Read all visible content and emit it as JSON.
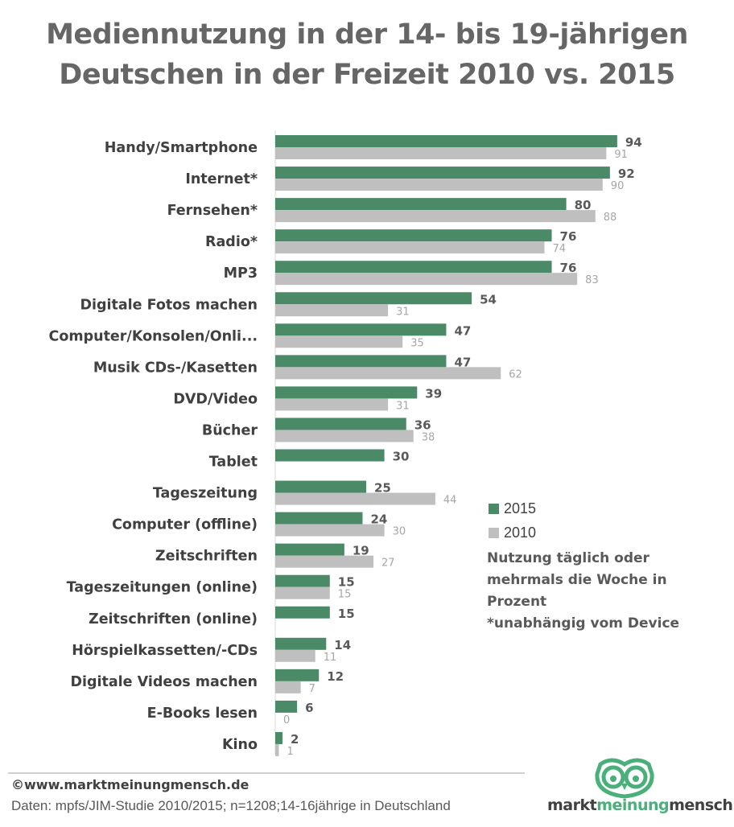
{
  "title_line1": "Mediennutzung in der 14- bis 19-jährigen",
  "title_line2": "Deutschen in der Freizeit 2010 vs. 2015",
  "colors": {
    "s2015": "#4a8a67",
    "s2010": "#bfbfbf",
    "logo_green": "#4ab07a"
  },
  "chart_data": {
    "type": "bar",
    "orientation": "horizontal",
    "categories": [
      "Handy/Smartphone",
      "Internet*",
      "Fernsehen*",
      "Radio*",
      "MP3",
      "Digitale Fotos machen",
      "Computer/Konsolen/Onli...",
      "Musik CDs-/Kasetten",
      "DVD/Video",
      "Bücher",
      "Tablet",
      "Tageszeitung",
      "Computer (offline)",
      "Zeitschriften",
      "Tageszeitungen (online)",
      "Zeitschriften (online)",
      "Hörspielkassetten/-CDs",
      "Digitale Videos machen",
      "E-Books lesen",
      "Kino"
    ],
    "series": [
      {
        "name": "2015",
        "values": [
          94,
          92,
          80,
          76,
          76,
          54,
          47,
          47,
          39,
          36,
          30,
          25,
          24,
          19,
          15,
          15,
          14,
          12,
          6,
          2
        ]
      },
      {
        "name": "2010",
        "values": [
          91,
          90,
          88,
          74,
          83,
          31,
          35,
          62,
          31,
          38,
          null,
          44,
          30,
          27,
          15,
          null,
          11,
          7,
          0,
          1
        ]
      }
    ],
    "xlim": [
      0,
      100
    ],
    "legend": "right"
  },
  "legend": {
    "item1": "2015",
    "item2": "2010"
  },
  "note": {
    "line1": "Nutzung täglich oder",
    "line2": "mehrmals die Woche in",
    "line3": "Prozent",
    "line4": "*unabhängig vom Device"
  },
  "footer": {
    "copyright": "©www.marktmeinungmensch.de",
    "source": "Daten: mpfs/JIM-Studie 2010/2015; n=1208;14-16jährige in Deutschland"
  },
  "logo": {
    "part1": "markt",
    "part2": "meinung",
    "part3": "mensch"
  }
}
